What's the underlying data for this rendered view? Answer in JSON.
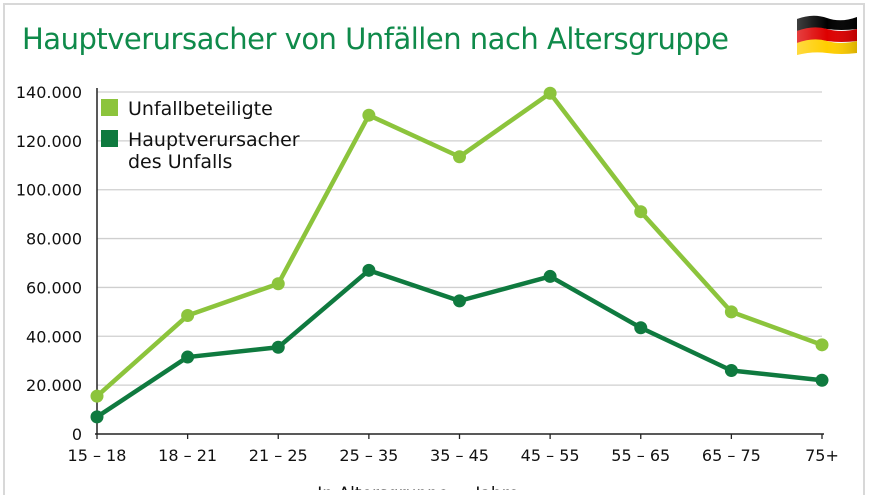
{
  "header": {
    "title": "Hauptverursacher von Unfällen nach Altersgruppe",
    "flag_icon": "germany-flag-icon",
    "flag_colors": [
      "#000000",
      "#dd0000",
      "#ffce00"
    ]
  },
  "chart_data": {
    "type": "line",
    "title": "Hauptverursacher von Unfällen nach Altersgruppe",
    "categories": [
      "15 – 18",
      "18 – 21",
      "21 – 25",
      "25 – 35",
      "35 – 45",
      "45 – 55",
      "55 – 65",
      "65 – 75",
      "75+"
    ],
    "series": [
      {
        "name": "Unfallbeteiligte",
        "color": "#8cc43c",
        "values": [
          15500,
          48500,
          61500,
          130500,
          113500,
          139500,
          91000,
          50000,
          36500
        ]
      },
      {
        "name": "Hauptverursacher\ndes Unfalls",
        "color": "#0f7a3f",
        "values": [
          7000,
          31500,
          35500,
          67000,
          54500,
          64500,
          43500,
          26000,
          22000
        ]
      }
    ],
    "yticks": [
      "0",
      "20.000",
      "40.000",
      "60.000",
      "80.000",
      "100.000",
      "120.000",
      "140.000"
    ],
    "ylim": [
      0,
      140000
    ],
    "grid": true,
    "legend_position": "top-left",
    "xlabel": "In Altersgruppe ... Jahre"
  }
}
